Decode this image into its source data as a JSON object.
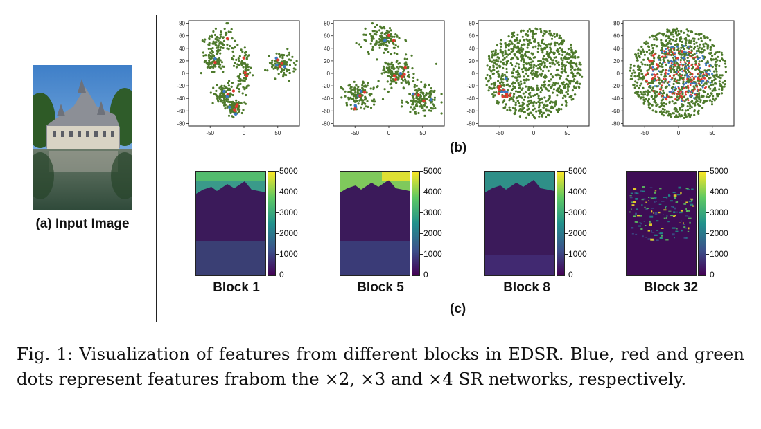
{
  "input": {
    "caption": "(a) Input Image"
  },
  "tsne": {
    "label": "(b)",
    "ticks_x": [
      "-50",
      "0",
      "50"
    ],
    "ticks_y": [
      "80",
      "60",
      "40",
      "20",
      "0",
      "-20",
      "-40",
      "-60",
      "-80"
    ],
    "colors": {
      "blue": "#3a78c2",
      "red": "#e03a2f",
      "green": "#4e7a2c"
    }
  },
  "heatmaps": {
    "label": "(c)",
    "colorbar_ticks": [
      "5000",
      "4000",
      "3000",
      "2000",
      "1000",
      "0"
    ],
    "blocks": [
      {
        "label": "Block 1"
      },
      {
        "label": "Block 5"
      },
      {
        "label": "Block 8"
      },
      {
        "label": "Block 32"
      }
    ]
  },
  "caption": {
    "text": "Fig. 1: Visualization of features from different blocks in EDSR. Blue, red and green dots represent features frabom the ×2, ×3 and ×4 SR networks, respectively."
  }
}
